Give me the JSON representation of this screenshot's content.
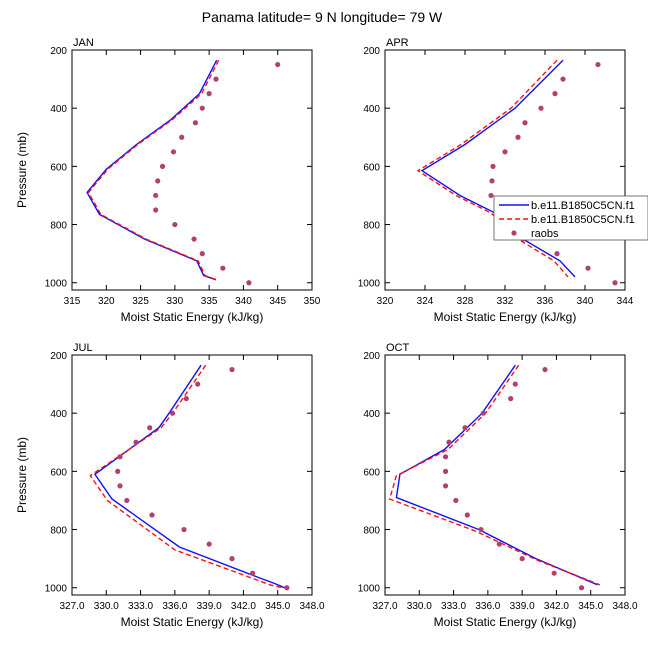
{
  "figure": {
    "title": "Panama  latitude= 9 N longitude= 79 W"
  },
  "legend": {
    "entries": [
      {
        "label": "b.e11.B1850C5CN.f1",
        "style": "solid",
        "color": "#1010ff"
      },
      {
        "label": "b.e11.B1850C5CN.f1",
        "style": "dashed",
        "color": "#ff1010"
      },
      {
        "label": "raobs",
        "style": "dots",
        "color": "#b04070"
      }
    ]
  },
  "chart_data": [
    {
      "type": "line",
      "panel": "JAN",
      "title": "JAN",
      "xlabel": "Moist Static Energy (kJ/kg)",
      "ylabel": "Pressure (mb)",
      "xlim": [
        315,
        350
      ],
      "ylim": [
        200,
        1025
      ],
      "y_inverted": true,
      "xticks": [
        315,
        320,
        325,
        330,
        335,
        340,
        345,
        350
      ],
      "xtick_labels": [
        "315",
        "320",
        "325",
        "330",
        "335",
        "340",
        "345",
        "350"
      ],
      "yticks": [
        200,
        400,
        600,
        800,
        1000
      ],
      "ytick_labels": [
        "200",
        "400",
        "600",
        "800",
        "1000"
      ],
      "series": [
        {
          "name": "b.e11.B1850C5CN.f1",
          "style": "solid",
          "color": "#1010ff",
          "pressure": [
            235,
            350,
            440,
            525,
            610,
            690,
            765,
            850,
            925,
            975,
            990
          ],
          "values": [
            336.1,
            333.6,
            329.4,
            324.4,
            320.0,
            317.2,
            319.0,
            325.6,
            333.2,
            334.2,
            336.0
          ]
        },
        {
          "name": "b.e11.B1850C5CN.f1",
          "style": "dashed",
          "color": "#ff1010",
          "pressure": [
            235,
            350,
            440,
            525,
            610,
            690,
            765,
            850,
            925,
            975,
            990
          ],
          "values": [
            336.4,
            333.9,
            329.6,
            324.6,
            320.2,
            317.4,
            319.2,
            325.8,
            333.4,
            334.4,
            336.1
          ]
        },
        {
          "name": "raobs",
          "style": "dots",
          "color": "#b04070",
          "pressure": [
            250,
            300,
            350,
            400,
            450,
            500,
            550,
            600,
            650,
            700,
            750,
            800,
            850,
            900,
            950,
            1000
          ],
          "values": [
            345.0,
            336.0,
            335.0,
            334.0,
            333.0,
            331.0,
            329.8,
            328.2,
            327.5,
            327.2,
            327.2,
            330.0,
            332.8,
            334.0,
            337.0,
            340.8
          ]
        }
      ]
    },
    {
      "type": "line",
      "panel": "APR",
      "title": "APR",
      "xlabel": "Moist Static Energy (kJ/kg)",
      "ylabel": "",
      "xlim": [
        320,
        344
      ],
      "ylim": [
        200,
        1025
      ],
      "y_inverted": true,
      "xticks": [
        320,
        324,
        328,
        332,
        336,
        340,
        344
      ],
      "xtick_labels": [
        "320",
        "324",
        "328",
        "332",
        "336",
        "340",
        "344"
      ],
      "yticks": [
        200,
        400,
        600,
        800,
        1000
      ],
      "ytick_labels": [
        "200",
        "400",
        "600",
        "800",
        "1000"
      ],
      "series": [
        {
          "name": "b.e11.B1850C5CN.f1",
          "style": "solid",
          "color": "#1010ff",
          "pressure": [
            235,
            400,
            525,
            615,
            700,
            760,
            850,
            925,
            980
          ],
          "values": [
            337.8,
            333.0,
            328.0,
            323.7,
            327.5,
            331.0,
            333.8,
            337.5,
            339.0
          ]
        },
        {
          "name": "b.e11.B1850C5CN.f1",
          "style": "dashed",
          "color": "#ff1010",
          "pressure": [
            235,
            400,
            525,
            615,
            700,
            760,
            850,
            925,
            980
          ],
          "values": [
            337.2,
            332.6,
            327.6,
            323.3,
            327.1,
            330.6,
            333.3,
            336.9,
            338.3
          ]
        },
        {
          "name": "raobs",
          "style": "dots",
          "color": "#b04070",
          "pressure": [
            250,
            300,
            350,
            400,
            450,
            500,
            550,
            600,
            650,
            700,
            750,
            800,
            850,
            900,
            950,
            1000
          ],
          "values": [
            341.3,
            337.8,
            337.0,
            335.6,
            334.0,
            333.3,
            332.0,
            330.8,
            330.7,
            330.6,
            332.0,
            332.8,
            333.8,
            337.2,
            340.3,
            343.0
          ]
        }
      ]
    },
    {
      "type": "line",
      "panel": "JUL",
      "title": "JUL",
      "xlabel": "Moist Static Energy (kJ/kg)",
      "ylabel": "Pressure (mb)",
      "xlim": [
        327,
        348
      ],
      "ylim": [
        200,
        1025
      ],
      "y_inverted": true,
      "xticks": [
        327,
        330,
        333,
        336,
        339,
        342,
        345,
        348
      ],
      "xtick_labels": [
        "327.0",
        "330.0",
        "333.0",
        "336.0",
        "339.0",
        "342.0",
        "345.0",
        "348.0"
      ],
      "yticks": [
        200,
        400,
        600,
        800,
        1000
      ],
      "ytick_labels": [
        "200",
        "400",
        "600",
        "800",
        "1000"
      ],
      "series": [
        {
          "name": "b.e11.B1850C5CN.f1",
          "style": "solid",
          "color": "#1010ff",
          "pressure": [
            235,
            400,
            450,
            610,
            695,
            860,
            960,
            985,
            1000
          ],
          "values": [
            338.3,
            335.5,
            334.6,
            329.0,
            330.5,
            336.4,
            343.0,
            344.7,
            345.6
          ]
        },
        {
          "name": "b.e11.B1850C5CN.f1",
          "style": "dashed",
          "color": "#ff1010",
          "pressure": [
            235,
            400,
            450,
            615,
            700,
            870,
            965,
            990,
            1000
          ],
          "values": [
            338.7,
            335.8,
            334.8,
            328.6,
            330.1,
            336.0,
            342.6,
            344.3,
            345.4
          ]
        },
        {
          "name": "raobs",
          "style": "dots",
          "color": "#b04070",
          "pressure": [
            250,
            300,
            350,
            400,
            450,
            500,
            550,
            600,
            650,
            700,
            750,
            800,
            850,
            900,
            950,
            1000
          ],
          "values": [
            341.0,
            338.0,
            337.0,
            335.8,
            333.8,
            332.6,
            331.2,
            331.0,
            331.2,
            331.8,
            334.0,
            336.8,
            339.0,
            341.0,
            342.8,
            345.8
          ]
        }
      ]
    },
    {
      "type": "line",
      "panel": "OCT",
      "title": "OCT",
      "xlabel": "Moist Static Energy (kJ/kg)",
      "ylabel": "",
      "xlim": [
        327,
        348
      ],
      "ylim": [
        200,
        1025
      ],
      "y_inverted": true,
      "xticks": [
        327,
        330,
        333,
        336,
        339,
        342,
        345,
        348
      ],
      "xtick_labels": [
        "327.0",
        "330.0",
        "333.0",
        "336.0",
        "339.0",
        "342.0",
        "345.0",
        "348.0"
      ],
      "yticks": [
        200,
        400,
        600,
        800,
        1000
      ],
      "ytick_labels": [
        "200",
        "400",
        "600",
        "800",
        "1000"
      ],
      "series": [
        {
          "name": "b.e11.B1850C5CN.f1",
          "style": "solid",
          "color": "#1010ff",
          "pressure": [
            235,
            400,
            525,
            610,
            690,
            800,
            900,
            990
          ],
          "values": [
            338.4,
            335.5,
            332.2,
            328.3,
            328.0,
            335.2,
            340.2,
            345.6
          ]
        },
        {
          "name": "b.e11.B1850C5CN.f1",
          "style": "dashed",
          "color": "#ff1010",
          "pressure": [
            235,
            400,
            525,
            615,
            695,
            805,
            905,
            990
          ],
          "values": [
            338.7,
            335.8,
            332.5,
            328.0,
            327.4,
            334.9,
            340.3,
            345.8
          ]
        },
        {
          "name": "raobs",
          "style": "dots",
          "color": "#b04070",
          "pressure": [
            250,
            300,
            350,
            400,
            450,
            500,
            550,
            600,
            650,
            700,
            750,
            800,
            850,
            900,
            950,
            1000
          ],
          "values": [
            341.0,
            338.4,
            338.0,
            335.6,
            334.0,
            332.6,
            332.3,
            332.3,
            332.3,
            333.2,
            334.2,
            335.4,
            337.0,
            339.0,
            341.8,
            344.2
          ]
        }
      ]
    }
  ]
}
